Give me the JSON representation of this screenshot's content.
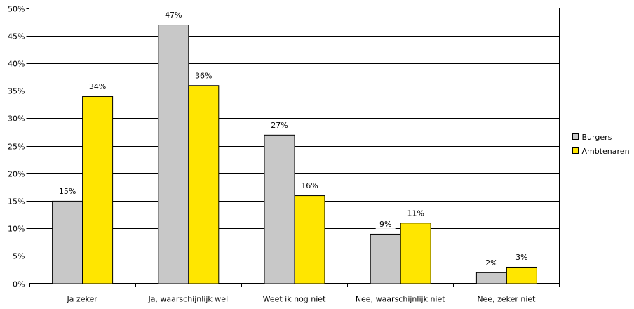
{
  "chart_data": {
    "type": "bar",
    "title": "",
    "xlabel": "",
    "ylabel": "",
    "categories": [
      "Ja zeker",
      "Ja, waarschijnlijk wel",
      "Weet ik nog niet",
      "Nee, waarschijnlijk niet",
      "Nee, zeker niet"
    ],
    "series": [
      {
        "name": "Burgers",
        "values": [
          15,
          47,
          27,
          9,
          2
        ],
        "labels": [
          "15%",
          "47%",
          "27%",
          "9%",
          "2%"
        ],
        "color": "#c8c8c8"
      },
      {
        "name": "Ambtenaren",
        "values": [
          34,
          36,
          16,
          11,
          3
        ],
        "labels": [
          "34%",
          "36%",
          "16%",
          "11%",
          "3%"
        ],
        "color": "#ffe600"
      }
    ],
    "ylim": [
      0,
      50
    ],
    "yticks": [
      0,
      5,
      10,
      15,
      20,
      25,
      30,
      35,
      40,
      45,
      50
    ],
    "ytick_labels": [
      "0%",
      "5%",
      "10%",
      "15%",
      "20%",
      "25%",
      "30%",
      "35%",
      "40%",
      "45%",
      "50%"
    ],
    "grid": true,
    "legend_position": "right"
  }
}
